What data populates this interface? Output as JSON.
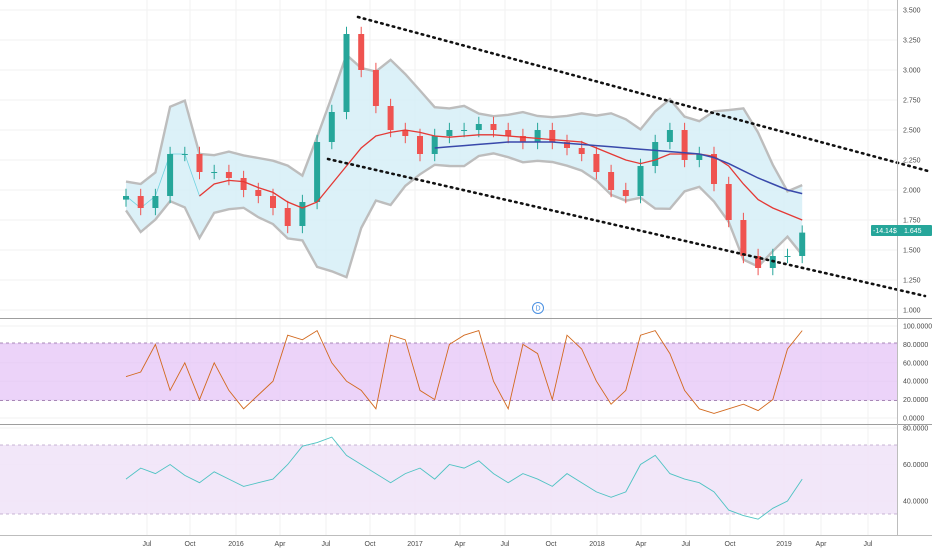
{
  "colors": {
    "up": "#26a69a",
    "down": "#ef5350",
    "ma_fast": "#e53935",
    "ma_slow": "#3949ab",
    "bb_fill": "#d6eef7",
    "bb_edge": "#bdbdbd",
    "rsi_line": "#d2691e",
    "rsi_band": "#e6c4f7",
    "lower_band": "#f1e4f8",
    "lower_line": "#4fc3c3",
    "channel": "#111111",
    "badge": "#26a69a"
  },
  "price_badge": {
    "change": "-14.14$",
    "price": "1.645"
  },
  "event_marker": {
    "label": "D"
  },
  "x_axis": {
    "labels": [
      "Jul",
      "Oct",
      "2016",
      "Apr",
      "Jul",
      "Oct",
      "2017",
      "Apr",
      "Jul",
      "Oct",
      "2018",
      "Apr",
      "Jul",
      "Oct",
      "2019",
      "Apr",
      "Jul"
    ]
  },
  "panes": [
    {
      "name": "price",
      "ticks": [
        "3.500",
        "3.250",
        "3.000",
        "2.750",
        "2.500",
        "2.250",
        "2.000",
        "1.750",
        "1.500",
        "1.250",
        "1.000"
      ]
    },
    {
      "name": "stochastic-rsi",
      "ticks": [
        "100.0000",
        "80.0000",
        "60.0000",
        "40.0000",
        "20.0000",
        "0.0000"
      ]
    },
    {
      "name": "rsi",
      "ticks": [
        "80.0000",
        "60.0000",
        "40.0000"
      ]
    }
  ],
  "chart_data": [
    {
      "type": "line",
      "title": "",
      "ylim": [
        1.0,
        3.5
      ],
      "x": [
        "2015-06",
        "2015-07",
        "2015-08",
        "2015-09",
        "2015-10",
        "2015-11",
        "2015-12",
        "2016-01",
        "2016-02",
        "2016-03",
        "2016-04",
        "2016-05",
        "2016-06",
        "2016-07",
        "2016-08",
        "2016-09",
        "2016-10",
        "2016-11",
        "2016-12",
        "2017-01",
        "2017-02",
        "2017-03",
        "2017-04",
        "2017-05",
        "2017-06",
        "2017-07",
        "2017-08",
        "2017-09",
        "2017-10",
        "2017-11",
        "2017-12",
        "2018-01",
        "2018-02",
        "2018-03",
        "2018-04",
        "2018-05",
        "2018-06",
        "2018-07",
        "2018-08",
        "2018-09",
        "2018-10",
        "2018-11",
        "2018-12",
        "2019-01",
        "2019-02",
        "2019-03",
        "2019-04"
      ],
      "series": [
        {
          "values": [
            1.95,
            1.85,
            1.95,
            2.3,
            2.3,
            2.15,
            2.15,
            2.1,
            2.0,
            1.95,
            1.85,
            1.7,
            1.9,
            2.4,
            2.65,
            3.3,
            3.0,
            2.7,
            2.5,
            2.45,
            2.3,
            2.45,
            2.5,
            2.5,
            2.55,
            2.5,
            2.45,
            2.4,
            2.5,
            2.4,
            2.35,
            2.3,
            2.15,
            2.0,
            1.95,
            2.2,
            2.4,
            2.5,
            2.25,
            2.3,
            2.05,
            1.75,
            1.45,
            1.35,
            1.45,
            1.45,
            1.645
          ]
        },
        {
          "values": [
            null,
            null,
            null,
            null,
            null,
            1.95,
            2.05,
            2.08,
            2.07,
            2.02,
            1.98,
            1.9,
            1.85,
            1.9,
            2.05,
            2.2,
            2.35,
            2.45,
            2.48,
            2.5,
            2.48,
            2.45,
            2.44,
            2.45,
            2.46,
            2.46,
            2.45,
            2.44,
            2.43,
            2.42,
            2.41,
            2.4,
            2.35,
            2.3,
            2.25,
            2.22,
            2.25,
            2.3,
            2.3,
            2.3,
            2.28,
            2.2,
            2.05,
            1.92,
            1.85,
            1.8,
            1.75
          ]
        },
        {
          "values": [
            null,
            null,
            null,
            null,
            null,
            null,
            null,
            null,
            null,
            null,
            null,
            null,
            null,
            null,
            null,
            null,
            null,
            null,
            null,
            null,
            null,
            2.35,
            2.36,
            2.37,
            2.38,
            2.39,
            2.4,
            2.4,
            2.4,
            2.4,
            2.39,
            2.38,
            2.37,
            2.36,
            2.35,
            2.34,
            2.33,
            2.32,
            2.31,
            2.3,
            2.27,
            2.22,
            2.16,
            2.1,
            2.05,
            2.0,
            1.97
          ]
        }
      ]
    },
    {
      "type": "line",
      "title": "",
      "ylim": [
        0,
        100
      ],
      "series": [
        {
          "values": [
            45,
            50,
            80,
            30,
            60,
            20,
            60,
            30,
            10,
            25,
            40,
            90,
            85,
            95,
            60,
            40,
            30,
            10,
            90,
            85,
            30,
            20,
            80,
            90,
            95,
            40,
            10,
            80,
            70,
            20,
            90,
            75,
            40,
            15,
            30,
            90,
            95,
            70,
            30,
            10,
            5,
            10,
            15,
            8,
            20,
            75,
            95
          ]
        }
      ]
    },
    {
      "type": "line",
      "title": "",
      "ylim": [
        20,
        80
      ],
      "series": [
        {
          "values": [
            52,
            58,
            55,
            60,
            54,
            50,
            56,
            52,
            48,
            50,
            52,
            60,
            70,
            72,
            75,
            65,
            60,
            55,
            50,
            55,
            58,
            52,
            60,
            58,
            62,
            55,
            50,
            55,
            52,
            48,
            55,
            50,
            45,
            42,
            45,
            60,
            65,
            55,
            52,
            50,
            45,
            35,
            32,
            30,
            36,
            40,
            52
          ]
        }
      ]
    }
  ]
}
